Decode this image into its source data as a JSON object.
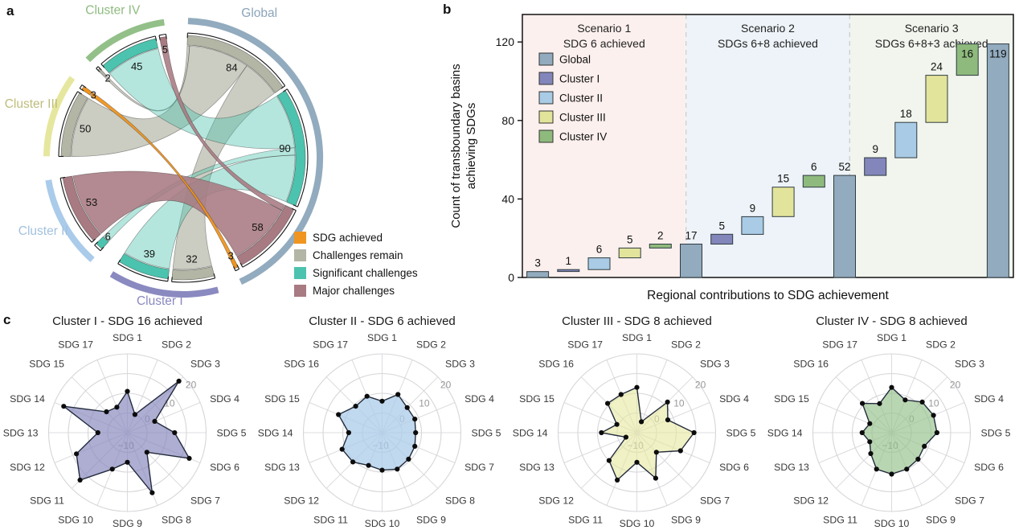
{
  "panel_letters": {
    "a": "a",
    "b": "b",
    "c": "c"
  },
  "chart_data": [
    {
      "id": "chord-sdg-status",
      "type": "chord",
      "panel": "a",
      "categories": {
        "achieved": {
          "label": "SDG achieved",
          "color": "#f0951f",
          "ribbon_opacity": 0.95
        },
        "remain": {
          "label": "Challenges remain",
          "color": "#b3b5a5",
          "ribbon_opacity": 0.68
        },
        "significant": {
          "label": "Significant challenges",
          "color": "#4cc3ae",
          "ribbon_opacity": 0.42
        },
        "major": {
          "label": "Major challenges",
          "color": "#a87a82",
          "ribbon_opacity": 0.88
        }
      },
      "legend_order": [
        "achieved",
        "remain",
        "significant",
        "major"
      ],
      "groups": [
        {
          "name": "Global",
          "band_color": "#92abbe",
          "label_color": "#8ba4b9",
          "segments": [
            {
              "category": "remain",
              "value": 84,
              "receives": [
                [
                  "Cluster IV",
                  2
                ],
                [
                  "Cluster III",
                  50
                ],
                [
                  "Cluster I",
                  32
                ]
              ]
            },
            {
              "category": "significant",
              "value": 90,
              "receives": [
                [
                  "Cluster IV",
                  45
                ],
                [
                  "Cluster II",
                  6
                ],
                [
                  "Cluster I",
                  39
                ]
              ]
            },
            {
              "category": "major",
              "value": 58,
              "receives": [
                [
                  "Cluster IV",
                  5
                ],
                [
                  "Cluster II",
                  53
                ]
              ]
            },
            {
              "category": "achieved",
              "value": 3,
              "receives": [
                [
                  "Cluster III",
                  3
                ]
              ]
            }
          ]
        },
        {
          "name": "Cluster I",
          "band_color": "#8a89c0",
          "label_color": "#8a89c0",
          "segments": [
            {
              "category": "remain",
              "value": 32
            },
            {
              "category": "significant",
              "value": 39
            }
          ]
        },
        {
          "name": "Cluster II",
          "band_color": "#aacbea",
          "label_color": "#a3c1de",
          "segments": [
            {
              "category": "significant",
              "value": 6
            },
            {
              "category": "major",
              "value": 53
            }
          ]
        },
        {
          "name": "Cluster III",
          "band_color": "#e6e79e",
          "label_color": "#bfbc7c",
          "segments": [
            {
              "category": "remain",
              "value": 50
            },
            {
              "category": "achieved",
              "value": 3
            }
          ]
        },
        {
          "name": "Cluster IV",
          "band_color": "#93c088",
          "label_color": "#8fbb80",
          "segments": [
            {
              "category": "remain",
              "value": 2
            },
            {
              "category": "significant",
              "value": 45
            },
            {
              "category": "major",
              "value": 5
            }
          ]
        }
      ]
    },
    {
      "id": "waterfall-basins",
      "type": "waterfall",
      "panel": "b",
      "x_title": "Regional contributions to SDG achievement",
      "y_title_lines": [
        "Count of transboundary basins",
        "achieving SDGs"
      ],
      "y_ticks": [
        {
          "value": 0,
          "label": "0"
        },
        {
          "value": 40,
          "label": "40"
        },
        {
          "value": 80,
          "label": "80"
        },
        {
          "value": 120,
          "label": "120"
        }
      ],
      "y_max": 134,
      "series": [
        {
          "name": "Global",
          "color": "#92abbe"
        },
        {
          "name": "Cluster I",
          "color": "#8386bb"
        },
        {
          "name": "Cluster II",
          "color": "#a9cbe5"
        },
        {
          "name": "Cluster III",
          "color": "#e3e49b"
        },
        {
          "name": "Cluster IV",
          "color": "#8eba7d"
        }
      ],
      "scenarios": [
        {
          "title_lines": [
            "Scenario 1",
            "SDG 6 achieved"
          ],
          "bg": "#fcf0ee",
          "bars": [
            {
              "series": "Global",
              "start": 0,
              "end": 3,
              "label": "3"
            },
            {
              "series": "Cluster I",
              "start": 3,
              "end": 4,
              "label": "1"
            },
            {
              "series": "Cluster II",
              "start": 4,
              "end": 10,
              "label": "6"
            },
            {
              "series": "Cluster III",
              "start": 10,
              "end": 15,
              "label": "5"
            },
            {
              "series": "Cluster IV",
              "start": 15,
              "end": 17,
              "label": "2"
            },
            {
              "series": "Global",
              "start": 0,
              "end": 17,
              "label": "17"
            }
          ]
        },
        {
          "title_lines": [
            "Scenario 2",
            "SDGs 6+8 achieved"
          ],
          "bg": "#edf3f8",
          "bars": [
            {
              "series": "Cluster I",
              "start": 17,
              "end": 22,
              "label": "5"
            },
            {
              "series": "Cluster II",
              "start": 22,
              "end": 31,
              "label": "9"
            },
            {
              "series": "Cluster III",
              "start": 31,
              "end": 46,
              "label": "15"
            },
            {
              "series": "Cluster IV",
              "start": 46,
              "end": 52,
              "label": "6"
            },
            {
              "series": "Global",
              "start": 0,
              "end": 52,
              "label": "52"
            }
          ]
        },
        {
          "title_lines": [
            "Scenario 3",
            "SDGs 6+8+3 achieved"
          ],
          "bg": "#f1f5ed",
          "bars": [
            {
              "series": "Cluster I",
              "start": 52,
              "end": 61,
              "label": "9"
            },
            {
              "series": "Cluster II",
              "start": 61,
              "end": 79,
              "label": "18"
            },
            {
              "series": "Cluster III",
              "start": 79,
              "end": 103,
              "label": "24"
            },
            {
              "series": "Cluster IV",
              "start": 103,
              "end": 119,
              "label": "16"
            },
            {
              "series": "Global",
              "start": 0,
              "end": 119,
              "label": "119"
            }
          ]
        }
      ]
    },
    {
      "id": "radar-cluster-1",
      "type": "radar",
      "panel": "c",
      "title": "Cluster I - SDG 16 achieved",
      "color": "#8886bd",
      "fill_opacity": 0.68,
      "r_min": -20,
      "r_max": 20,
      "r_ticks": [
        {
          "value": -10,
          "label": "−10"
        },
        {
          "value": 0,
          "label": "0"
        },
        {
          "value": 10,
          "label": "10"
        },
        {
          "value": 20,
          "label": "20"
        }
      ],
      "axes": [
        "SDG 1",
        "SDG 2",
        "SDG 3",
        "SDG 4",
        "SDG 5",
        "SDG 6",
        "SDG 7",
        "SDG 8",
        "SDG 9",
        "SDG 10",
        "SDG 11",
        "SDG 12",
        "SDG 13",
        "SDG 14",
        "SDG 15",
        "SDG 17"
      ],
      "values": [
        1,
        -10,
        17,
        -5,
        4,
        14,
        -6,
        13,
        -5,
        0,
        14,
        8,
        -5,
        15,
        -5,
        -6
      ]
    },
    {
      "id": "radar-cluster-2",
      "type": "radar",
      "panel": "c",
      "title": "Cluster II - SDG 6 achieved",
      "color": "#abcce9",
      "fill_opacity": 0.75,
      "r_min": -20,
      "r_max": 20,
      "r_ticks": [
        {
          "value": -10,
          "label": "−10"
        },
        {
          "value": 0,
          "label": "0"
        },
        {
          "value": 10,
          "label": "10"
        },
        {
          "value": 20,
          "label": "20"
        }
      ],
      "axes": [
        "SDG 1",
        "SDG 2",
        "SDG 3",
        "SDG 4",
        "SDG 5",
        "SDG 7",
        "SDG 8",
        "SDG 9",
        "SDG 10",
        "SDG 11",
        "SDG 12",
        "SDG 13",
        "SDG 14",
        "SDG 15",
        "SDG 16",
        "SDG 17"
      ],
      "values": [
        -4,
        1,
        -2,
        -2,
        -3,
        -2,
        -1,
        0,
        -1,
        -2,
        1,
        2,
        -3,
        4,
        -1,
        0
      ]
    },
    {
      "id": "radar-cluster-3",
      "type": "radar",
      "panel": "c",
      "title": "Cluster III - SDG 8 achieved",
      "color": "#e6e79e",
      "fill_opacity": 0.6,
      "r_min": -20,
      "r_max": 20,
      "r_ticks": [
        {
          "value": -10,
          "label": "−10"
        },
        {
          "value": 0,
          "label": "0"
        },
        {
          "value": 10,
          "label": "10"
        },
        {
          "value": 20,
          "label": "20"
        }
      ],
      "axes": [
        "SDG 1",
        "SDG 2",
        "SDG 3",
        "SDG 4",
        "SDG 5",
        "SDG 6",
        "SDG 7",
        "SDG 9",
        "SDG 10",
        "SDG 11",
        "SDG 12",
        "SDG 13",
        "SDG 14",
        "SDG 15",
        "SDG 16",
        "SDG 17"
      ],
      "values": [
        3,
        -14,
        2,
        -3,
        9,
        4,
        -6,
        5,
        -5,
        6,
        0,
        -14,
        -2,
        -9,
        1,
        1
      ]
    },
    {
      "id": "radar-cluster-4",
      "type": "radar",
      "panel": "c",
      "title": "Cluster IV - SDG 8 achieved",
      "color": "#93c088",
      "fill_opacity": 0.65,
      "r_min": -20,
      "r_max": 20,
      "r_ticks": [
        {
          "value": -10,
          "label": "−10"
        },
        {
          "value": 0,
          "label": "0"
        },
        {
          "value": 10,
          "label": "10"
        },
        {
          "value": 20,
          "label": "20"
        }
      ],
      "axes": [
        "SDG 1",
        "SDG 2",
        "SDG 3",
        "SDG 4",
        "SDG 5",
        "SDG 6",
        "SDG 7",
        "SDG 9",
        "SDG 10",
        "SDG 11",
        "SDG 12",
        "SDG 13",
        "SDG 14",
        "SDG 15",
        "SDG 16",
        "SDG 17"
      ],
      "values": [
        3,
        -2,
        2,
        3,
        3,
        -2,
        -1,
        0,
        1,
        0,
        -5,
        -8,
        -5,
        -8,
        1,
        -4
      ]
    }
  ]
}
